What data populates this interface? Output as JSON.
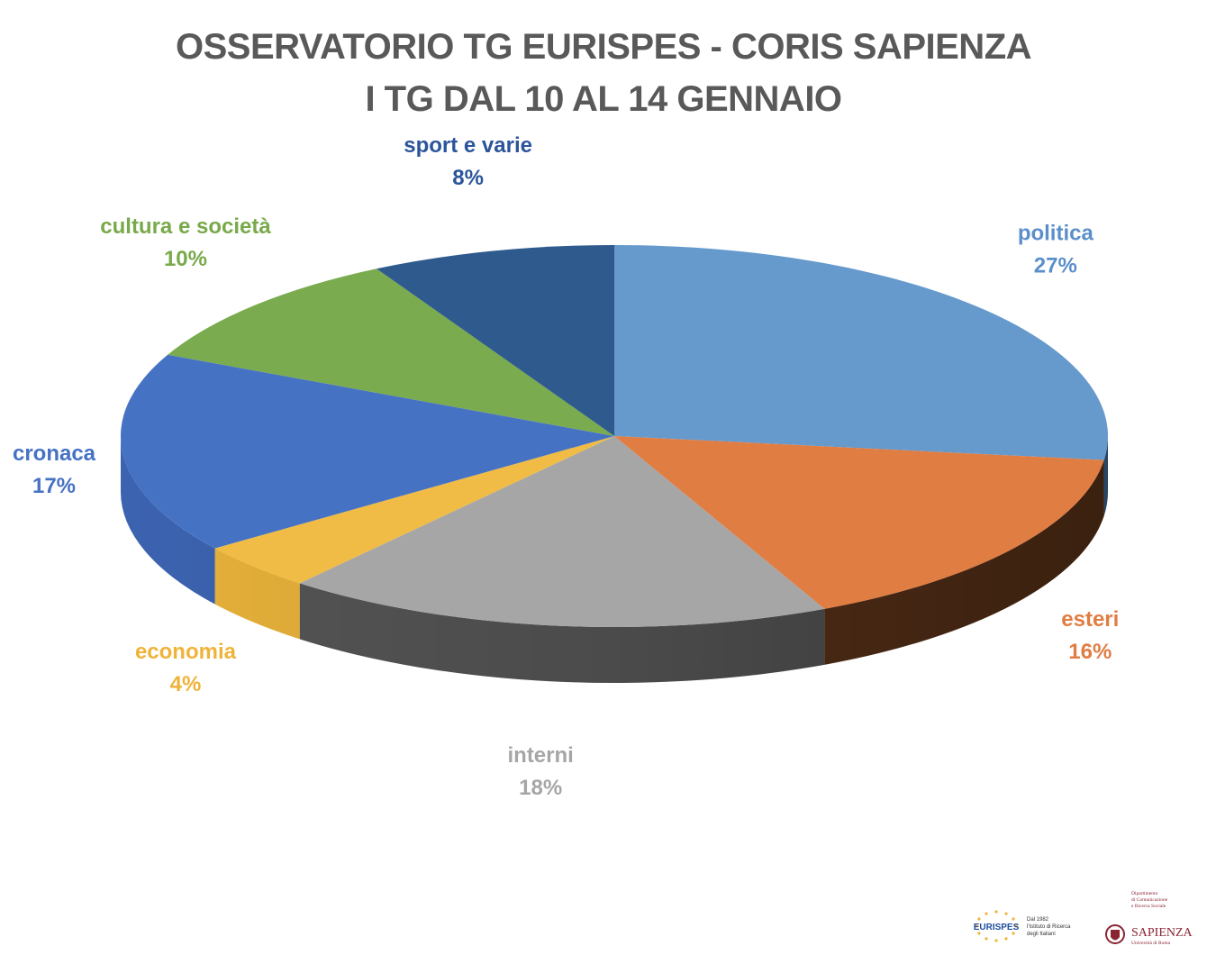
{
  "chart_data": {
    "type": "pie",
    "title": "OSSERVATORIO TG EURISPES - CORIS SAPIENZA",
    "subtitle": "I TG DAL 10 AL 14 GENNAIO",
    "slices": [
      {
        "label": "politica",
        "value": 27,
        "value_label": "27%",
        "color": "#6699cc",
        "side": "#3f6a99",
        "label_color": "#5b8fcb"
      },
      {
        "label": "esteri",
        "value": 16,
        "value_label": "16%",
        "color": "#e07d43",
        "side": "#5a3218",
        "label_color": "#e07d43"
      },
      {
        "label": "interni",
        "value": 18,
        "value_label": "18%",
        "color": "#a6a6a6",
        "side": "#555555",
        "label_color": "#a6a6a6"
      },
      {
        "label": "economia",
        "value": 4,
        "value_label": "4%",
        "color": "#f0bc45",
        "side": "#e8b23a",
        "label_color": "#f0b33a"
      },
      {
        "label": "cronaca",
        "value": 17,
        "value_label": "17%",
        "color": "#4672c4",
        "side": "#3c63b0",
        "label_color": "#4672c4"
      },
      {
        "label": "cultura e società",
        "value": 10,
        "value_label": "10%",
        "color": "#7aab4f",
        "side": "#5c8a37",
        "label_color": "#78a94a"
      },
      {
        "label": "sport e varie",
        "value": 8,
        "value_label": "8%",
        "color": "#2e5a8e",
        "side": "#1f4170",
        "label_color": "#2b559a"
      }
    ]
  },
  "logos": {
    "eurispes": {
      "name": "EURISPES",
      "tagline": "Dal 1982 l'Istituto di Ricerca degli Italiani",
      "color": "#1f4e9e",
      "star_color": "#f0b33a"
    },
    "sapienza": {
      "name": "SAPIENZA",
      "subtitle": "Università di Roma",
      "department": "Dipartimento di Comunicazione e Ricerca Sociale",
      "color": "#8a2432"
    }
  }
}
